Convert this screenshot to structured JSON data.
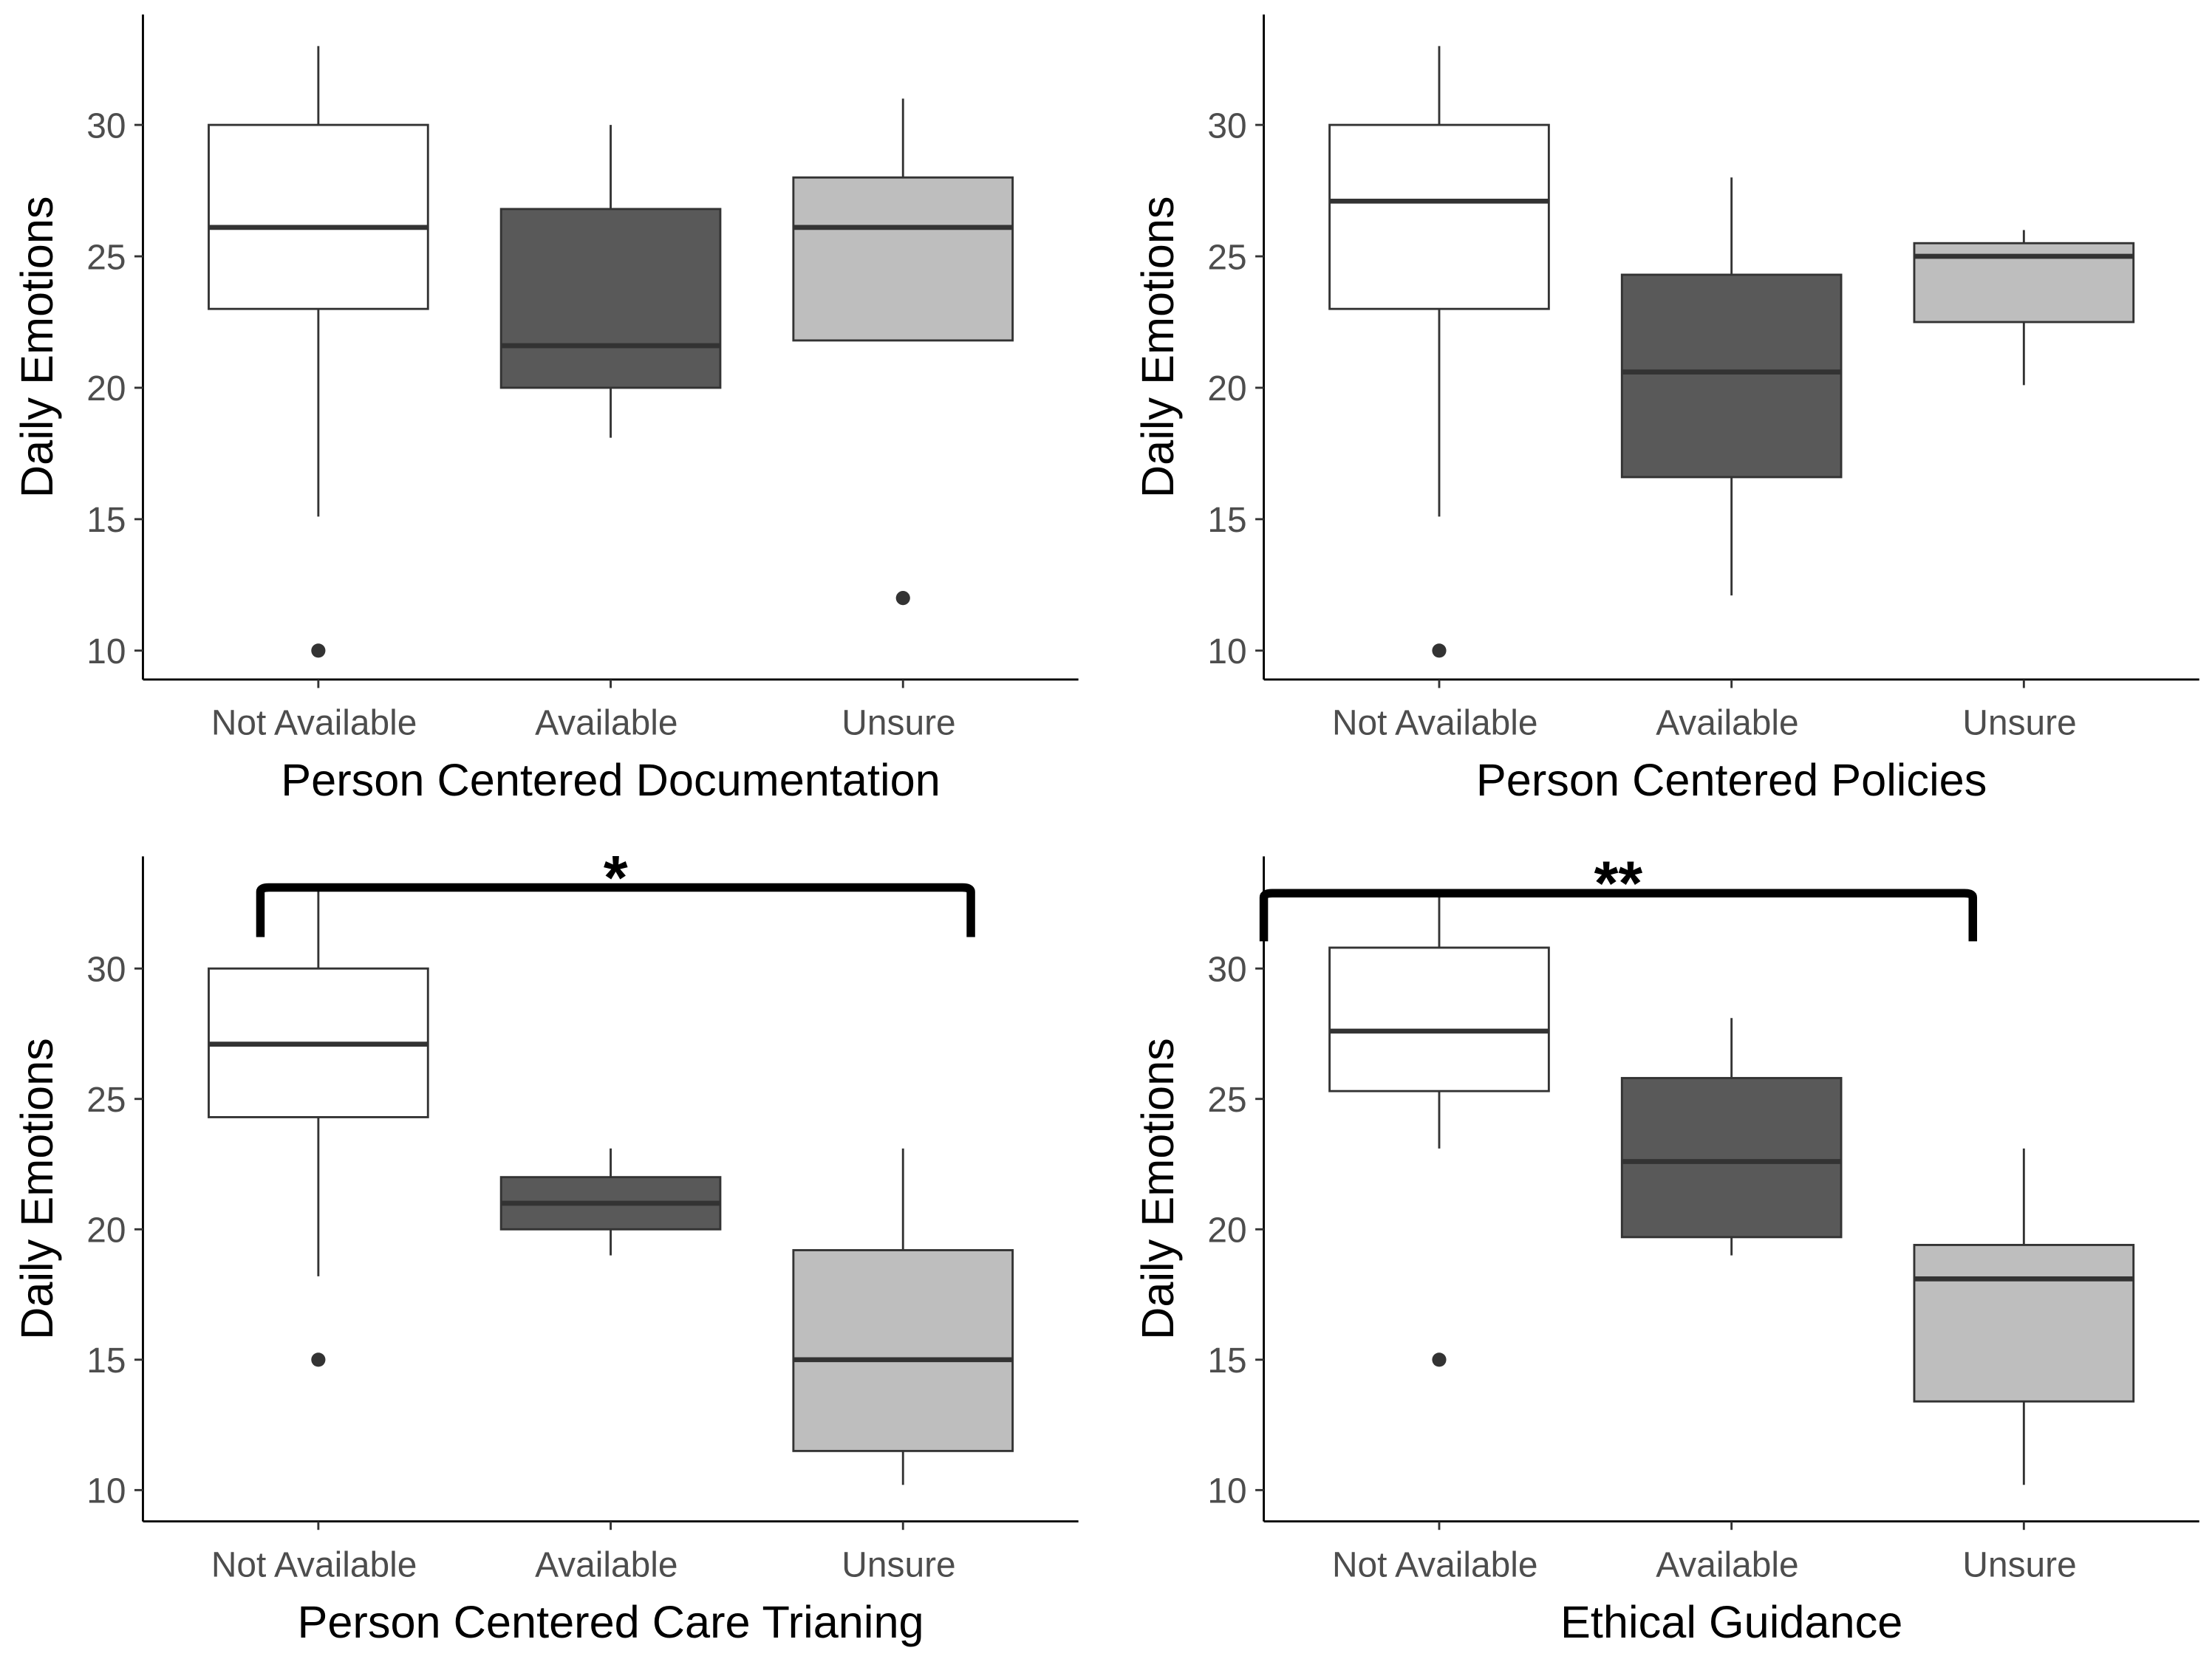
{
  "chart_data": [
    {
      "type": "box",
      "x_label": "Person Centered Documentation",
      "y_label": "Daily Emotions",
      "categories": [
        "Not Available",
        "Available",
        "Unsure"
      ],
      "colors": [
        "#ffffff",
        "#595959",
        "#bebebe"
      ],
      "boxes": [
        {
          "whislo": 15.1,
          "q1": 23,
          "median": 26.1,
          "q3": 30,
          "whishi": 33,
          "outliers": [
            10
          ]
        },
        {
          "whislo": 18.1,
          "q1": 20,
          "median": 21.6,
          "q3": 26.8,
          "whishi": 30,
          "outliers": []
        },
        {
          "whislo": 21.8,
          "q1": 21.8,
          "median": 26.1,
          "q3": 28,
          "whishi": 31,
          "outliers": [
            12
          ]
        }
      ],
      "ylim": [
        8.9,
        34.2
      ],
      "yticks": [
        10,
        15,
        20,
        25,
        30
      ]
    },
    {
      "type": "box",
      "x_label": "Person Centered Policies",
      "y_label": "Daily Emotions",
      "categories": [
        "Not Available",
        "Available",
        "Unsure"
      ],
      "colors": [
        "#ffffff",
        "#595959",
        "#bebebe"
      ],
      "boxes": [
        {
          "whislo": 15.1,
          "q1": 23,
          "median": 27.1,
          "q3": 30,
          "whishi": 33,
          "outliers": [
            10
          ]
        },
        {
          "whislo": 12.1,
          "q1": 16.6,
          "median": 20.6,
          "q3": 24.3,
          "whishi": 28,
          "outliers": []
        },
        {
          "whislo": 20.1,
          "q1": 22.5,
          "median": 25,
          "q3": 25.5,
          "whishi": 26,
          "outliers": []
        }
      ],
      "ylim": [
        8.9,
        34.2
      ],
      "yticks": [
        10,
        15,
        20,
        25,
        30
      ]
    },
    {
      "type": "box",
      "x_label": "Person Centered Care Trianing",
      "y_label": "Daily Emotions",
      "categories": [
        "Not Available",
        "Available",
        "Unsure"
      ],
      "colors": [
        "#ffffff",
        "#595959",
        "#bebebe"
      ],
      "boxes": [
        {
          "whislo": 18.2,
          "q1": 24.3,
          "median": 27.1,
          "q3": 30,
          "whishi": 33,
          "outliers": [
            15
          ]
        },
        {
          "whislo": 19,
          "q1": 20,
          "median": 21,
          "q3": 22,
          "whishi": 23.1,
          "outliers": []
        },
        {
          "whislo": 10.2,
          "q1": 11.5,
          "median": 15,
          "q3": 19.2,
          "whishi": 23.1,
          "outliers": []
        }
      ],
      "ylim": [
        8.8,
        34.3
      ],
      "yticks": [
        10,
        15,
        20,
        25,
        30
      ],
      "annotation": "*"
    },
    {
      "type": "box",
      "x_label": "Ethical Guidance",
      "y_label": "Daily Emotions",
      "categories": [
        "Not Available",
        "Available",
        "Unsure"
      ],
      "colors": [
        "#ffffff",
        "#595959",
        "#bebebe"
      ],
      "boxes": [
        {
          "whislo": 23.1,
          "q1": 25.3,
          "median": 27.6,
          "q3": 30.8,
          "whishi": 33,
          "outliers": [
            15
          ]
        },
        {
          "whislo": 19,
          "q1": 19.7,
          "median": 22.6,
          "q3": 25.8,
          "whishi": 28.1,
          "outliers": []
        },
        {
          "whislo": 10.2,
          "q1": 13.4,
          "median": 18.1,
          "q3": 19.4,
          "whishi": 23.1,
          "outliers": []
        }
      ],
      "ylim": [
        8.8,
        34.3
      ],
      "yticks": [
        10,
        15,
        20,
        25,
        30
      ],
      "annotation": "**"
    }
  ]
}
